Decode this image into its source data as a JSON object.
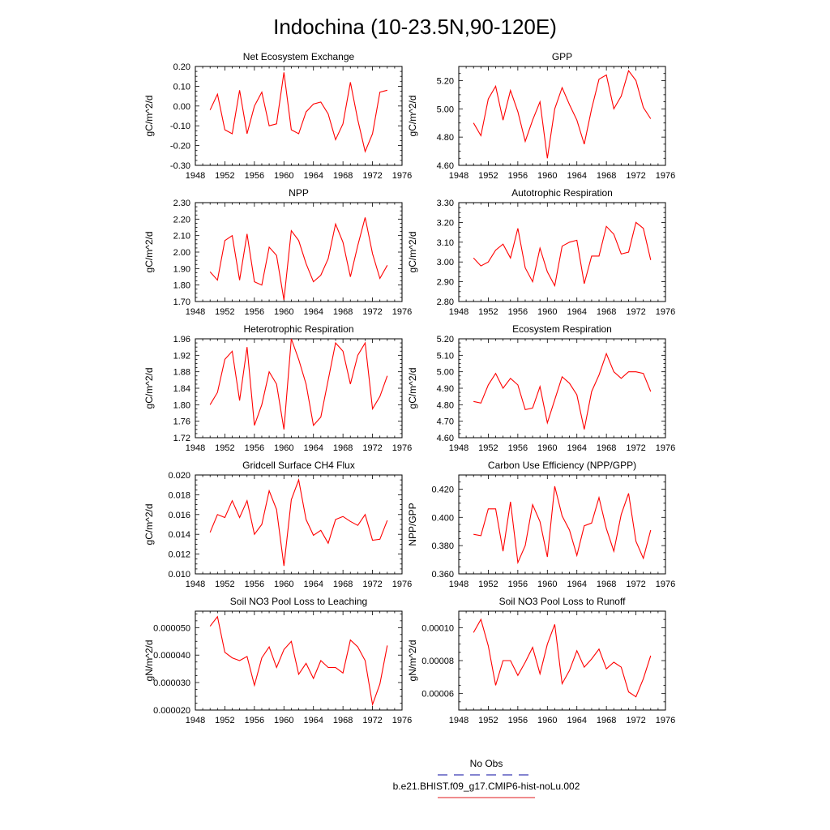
{
  "page_title": "Indochina (10-23.5N,90-120E)",
  "legend": {
    "items": [
      {
        "label": "No Obs",
        "color": "#3b3bb3",
        "style": "dashed"
      },
      {
        "label": "b.e21.BHIST.f09_g17.CMIP6-hist-noLu.002",
        "color": "#e8474a",
        "style": "solid"
      }
    ]
  },
  "chart_data": [
    {
      "type": "line",
      "title": "Net Ecosystem Exchange",
      "ylabel": "gC/m^2/d",
      "xlim": [
        1948,
        1976
      ],
      "xticks": [
        1948,
        1952,
        1956,
        1960,
        1964,
        1968,
        1972,
        1976
      ],
      "ylim": [
        -0.3,
        0.2
      ],
      "yticks": [
        -0.3,
        -0.2,
        -0.1,
        0.0,
        0.1,
        0.2
      ],
      "ytick_labels": [
        "-0.30",
        "-0.20",
        "-0.10",
        "0.00",
        "0.10",
        "0.20"
      ],
      "x": [
        1950,
        1951,
        1952,
        1953,
        1954,
        1955,
        1956,
        1957,
        1958,
        1959,
        1960,
        1961,
        1962,
        1963,
        1964,
        1965,
        1966,
        1967,
        1968,
        1969,
        1970,
        1971,
        1972,
        1973,
        1974
      ],
      "series": [
        {
          "color": "#ff0000",
          "values": [
            -0.02,
            0.06,
            -0.12,
            -0.14,
            0.08,
            -0.14,
            0.0,
            0.07,
            -0.1,
            -0.09,
            0.17,
            -0.12,
            -0.14,
            -0.03,
            0.01,
            0.02,
            -0.04,
            -0.17,
            -0.09,
            0.12,
            -0.07,
            -0.23,
            -0.14,
            0.07,
            0.08
          ]
        }
      ]
    },
    {
      "type": "line",
      "title": "GPP",
      "ylabel": "gC/m^2/d",
      "xlim": [
        1948,
        1976
      ],
      "xticks": [
        1948,
        1952,
        1956,
        1960,
        1964,
        1968,
        1972,
        1976
      ],
      "ylim": [
        4.6,
        5.3
      ],
      "yticks": [
        4.6,
        4.8,
        5.0,
        5.2
      ],
      "ytick_labels": [
        "4.60",
        "4.80",
        "5.00",
        "5.20"
      ],
      "x": [
        1950,
        1951,
        1952,
        1953,
        1954,
        1955,
        1956,
        1957,
        1958,
        1959,
        1960,
        1961,
        1962,
        1963,
        1964,
        1965,
        1966,
        1967,
        1968,
        1969,
        1970,
        1971,
        1972,
        1973,
        1974
      ],
      "series": [
        {
          "color": "#ff0000",
          "values": [
            4.9,
            4.81,
            5.07,
            5.16,
            4.92,
            5.13,
            4.98,
            4.77,
            4.92,
            5.05,
            4.65,
            5.0,
            5.15,
            5.03,
            4.92,
            4.75,
            5.0,
            5.21,
            5.24,
            5.0,
            5.09,
            5.27,
            5.2,
            5.01,
            4.93
          ]
        }
      ]
    },
    {
      "type": "line",
      "title": "NPP",
      "ylabel": "gC/m^2/d",
      "xlim": [
        1948,
        1976
      ],
      "xticks": [
        1948,
        1952,
        1956,
        1960,
        1964,
        1968,
        1972,
        1976
      ],
      "ylim": [
        1.7,
        2.3
      ],
      "yticks": [
        1.7,
        1.8,
        1.9,
        2.0,
        2.1,
        2.2,
        2.3
      ],
      "ytick_labels": [
        "1.70",
        "1.80",
        "1.90",
        "2.00",
        "2.10",
        "2.20",
        "2.30"
      ],
      "x": [
        1950,
        1951,
        1952,
        1953,
        1954,
        1955,
        1956,
        1957,
        1958,
        1959,
        1960,
        1961,
        1962,
        1963,
        1964,
        1965,
        1966,
        1967,
        1968,
        1969,
        1970,
        1971,
        1972,
        1973,
        1974
      ],
      "series": [
        {
          "color": "#ff0000",
          "values": [
            1.88,
            1.83,
            2.07,
            2.1,
            1.83,
            2.11,
            1.82,
            1.8,
            2.03,
            1.98,
            1.71,
            2.13,
            2.07,
            1.93,
            1.82,
            1.86,
            1.96,
            2.17,
            2.06,
            1.85,
            2.04,
            2.21,
            1.99,
            1.84,
            1.92
          ]
        }
      ]
    },
    {
      "type": "line",
      "title": "Autotrophic Respiration",
      "ylabel": "gC/m^2/d",
      "xlim": [
        1948,
        1976
      ],
      "xticks": [
        1948,
        1952,
        1956,
        1960,
        1964,
        1968,
        1972,
        1976
      ],
      "ylim": [
        2.8,
        3.3
      ],
      "yticks": [
        2.8,
        2.9,
        3.0,
        3.1,
        3.2,
        3.3
      ],
      "ytick_labels": [
        "2.80",
        "2.90",
        "3.00",
        "3.10",
        "3.20",
        "3.30"
      ],
      "x": [
        1950,
        1951,
        1952,
        1953,
        1954,
        1955,
        1956,
        1957,
        1958,
        1959,
        1960,
        1961,
        1962,
        1963,
        1964,
        1965,
        1966,
        1967,
        1968,
        1969,
        1970,
        1971,
        1972,
        1973,
        1974
      ],
      "series": [
        {
          "color": "#ff0000",
          "values": [
            3.02,
            2.98,
            3.0,
            3.06,
            3.09,
            3.02,
            3.17,
            2.97,
            2.9,
            3.07,
            2.95,
            2.88,
            3.08,
            3.1,
            3.11,
            2.89,
            3.03,
            3.03,
            3.18,
            3.14,
            3.04,
            3.05,
            3.2,
            3.17,
            3.01
          ]
        }
      ]
    },
    {
      "type": "line",
      "title": "Heterotrophic Respiration",
      "ylabel": "gC/m^2/d",
      "xlim": [
        1948,
        1976
      ],
      "xticks": [
        1948,
        1952,
        1956,
        1960,
        1964,
        1968,
        1972,
        1976
      ],
      "ylim": [
        1.72,
        1.96
      ],
      "yticks": [
        1.72,
        1.76,
        1.8,
        1.84,
        1.88,
        1.92,
        1.96
      ],
      "ytick_labels": [
        "1.72",
        "1.76",
        "1.80",
        "1.84",
        "1.88",
        "1.92",
        "1.96"
      ],
      "x": [
        1950,
        1951,
        1952,
        1953,
        1954,
        1955,
        1956,
        1957,
        1958,
        1959,
        1960,
        1961,
        1962,
        1963,
        1964,
        1965,
        1966,
        1967,
        1968,
        1969,
        1970,
        1971,
        1972,
        1973,
        1974
      ],
      "series": [
        {
          "color": "#ff0000",
          "values": [
            1.8,
            1.83,
            1.91,
            1.93,
            1.81,
            1.94,
            1.75,
            1.8,
            1.88,
            1.85,
            1.74,
            1.96,
            1.91,
            1.85,
            1.75,
            1.77,
            1.86,
            1.95,
            1.93,
            1.85,
            1.92,
            1.95,
            1.79,
            1.82,
            1.87
          ]
        }
      ]
    },
    {
      "type": "line",
      "title": "Ecosystem Respiration",
      "ylabel": "gC/m^2/d",
      "xlim": [
        1948,
        1976
      ],
      "xticks": [
        1948,
        1952,
        1956,
        1960,
        1964,
        1968,
        1972,
        1976
      ],
      "ylim": [
        4.6,
        5.2
      ],
      "yticks": [
        4.6,
        4.7,
        4.8,
        4.9,
        5.0,
        5.1,
        5.2
      ],
      "ytick_labels": [
        "4.60",
        "4.70",
        "4.80",
        "4.90",
        "5.00",
        "5.10",
        "5.20"
      ],
      "x": [
        1950,
        1951,
        1952,
        1953,
        1954,
        1955,
        1956,
        1957,
        1958,
        1959,
        1960,
        1961,
        1962,
        1963,
        1964,
        1965,
        1966,
        1967,
        1968,
        1969,
        1970,
        1971,
        1972,
        1973,
        1974
      ],
      "series": [
        {
          "color": "#ff0000",
          "values": [
            4.82,
            4.81,
            4.92,
            4.99,
            4.9,
            4.96,
            4.92,
            4.77,
            4.78,
            4.91,
            4.69,
            4.83,
            4.97,
            4.93,
            4.86,
            4.65,
            4.88,
            4.98,
            5.11,
            5.0,
            4.96,
            5.0,
            5.0,
            4.99,
            4.88
          ]
        }
      ]
    },
    {
      "type": "line",
      "title": "Gridcell Surface CH4 Flux",
      "ylabel": "gC/m^2/d",
      "xlim": [
        1948,
        1976
      ],
      "xticks": [
        1948,
        1952,
        1956,
        1960,
        1964,
        1968,
        1972,
        1976
      ],
      "ylim": [
        0.01,
        0.02
      ],
      "yticks": [
        0.01,
        0.012,
        0.014,
        0.016,
        0.018,
        0.02
      ],
      "ytick_labels": [
        "0.010",
        "0.012",
        "0.014",
        "0.016",
        "0.018",
        "0.020"
      ],
      "x": [
        1950,
        1951,
        1952,
        1953,
        1954,
        1955,
        1956,
        1957,
        1958,
        1959,
        1960,
        1961,
        1962,
        1963,
        1964,
        1965,
        1966,
        1967,
        1968,
        1969,
        1970,
        1971,
        1972,
        1973,
        1974
      ],
      "series": [
        {
          "color": "#ff0000",
          "values": [
            0.0142,
            0.016,
            0.0157,
            0.0174,
            0.0157,
            0.0174,
            0.014,
            0.015,
            0.0184,
            0.0165,
            0.0108,
            0.0175,
            0.0195,
            0.0155,
            0.0139,
            0.0144,
            0.0131,
            0.0155,
            0.0158,
            0.0153,
            0.0149,
            0.016,
            0.0134,
            0.0135,
            0.0154
          ]
        }
      ]
    },
    {
      "type": "line",
      "title": "Carbon Use Efficiency (NPP/GPP)",
      "ylabel": "NPP/GPP",
      "xlim": [
        1948,
        1976
      ],
      "xticks": [
        1948,
        1952,
        1956,
        1960,
        1964,
        1968,
        1972,
        1976
      ],
      "ylim": [
        0.36,
        0.43
      ],
      "yticks": [
        0.36,
        0.38,
        0.4,
        0.42
      ],
      "ytick_labels": [
        "0.360",
        "0.380",
        "0.400",
        "0.420"
      ],
      "x": [
        1950,
        1951,
        1952,
        1953,
        1954,
        1955,
        1956,
        1957,
        1958,
        1959,
        1960,
        1961,
        1962,
        1963,
        1964,
        1965,
        1966,
        1967,
        1968,
        1969,
        1970,
        1971,
        1972,
        1973,
        1974
      ],
      "series": [
        {
          "color": "#ff0000",
          "values": [
            0.388,
            0.387,
            0.406,
            0.406,
            0.376,
            0.411,
            0.368,
            0.38,
            0.409,
            0.397,
            0.372,
            0.422,
            0.401,
            0.391,
            0.373,
            0.394,
            0.396,
            0.414,
            0.392,
            0.376,
            0.402,
            0.417,
            0.383,
            0.371,
            0.391
          ]
        }
      ]
    },
    {
      "type": "line",
      "title": "Soil NO3 Pool Loss to Leaching",
      "ylabel": "gN/m^2/d",
      "xlim": [
        1948,
        1976
      ],
      "xticks": [
        1948,
        1952,
        1956,
        1960,
        1964,
        1968,
        1972,
        1976
      ],
      "ylim": [
        2e-05,
        5.6e-05
      ],
      "yticks": [
        2e-05,
        3e-05,
        4e-05,
        5e-05
      ],
      "ytick_labels": [
        "0.000020",
        "0.000030",
        "0.000040",
        "0.000050"
      ],
      "x": [
        1950,
        1951,
        1952,
        1953,
        1954,
        1955,
        1956,
        1957,
        1958,
        1959,
        1960,
        1961,
        1962,
        1963,
        1964,
        1965,
        1966,
        1967,
        1968,
        1969,
        1970,
        1971,
        1972,
        1973,
        1974
      ],
      "series": [
        {
          "color": "#ff0000",
          "values": [
            5.05e-05,
            5.4e-05,
            4.1e-05,
            3.9e-05,
            3.8e-05,
            3.95e-05,
            2.9e-05,
            3.9e-05,
            4.3e-05,
            3.55e-05,
            4.2e-05,
            4.5e-05,
            3.3e-05,
            3.7e-05,
            3.15e-05,
            3.8e-05,
            3.55e-05,
            3.55e-05,
            3.35e-05,
            4.55e-05,
            4.3e-05,
            3.8e-05,
            2.2e-05,
            2.95e-05,
            4.35e-05
          ]
        }
      ]
    },
    {
      "type": "line",
      "title": "Soil NO3 Pool Loss to Runoff",
      "ylabel": "gN/m^2/d",
      "xlim": [
        1948,
        1976
      ],
      "xticks": [
        1948,
        1952,
        1956,
        1960,
        1964,
        1968,
        1972,
        1976
      ],
      "ylim": [
        5e-05,
        0.00011
      ],
      "yticks": [
        6e-05,
        8e-05,
        0.0001
      ],
      "ytick_labels": [
        "0.00006",
        "0.00008",
        "0.00010"
      ],
      "x": [
        1950,
        1951,
        1952,
        1953,
        1954,
        1955,
        1956,
        1957,
        1958,
        1959,
        1960,
        1961,
        1962,
        1963,
        1964,
        1965,
        1966,
        1967,
        1968,
        1969,
        1970,
        1971,
        1972,
        1973,
        1974
      ],
      "series": [
        {
          "color": "#ff0000",
          "values": [
            9.7e-05,
            0.000105,
            8.9e-05,
            6.5e-05,
            8e-05,
            8e-05,
            7.1e-05,
            7.9e-05,
            8.8e-05,
            7.2e-05,
            9e-05,
            0.000102,
            6.6e-05,
            7.4e-05,
            8.6e-05,
            7.6e-05,
            8.1e-05,
            8.7e-05,
            7.5e-05,
            7.9e-05,
            7.6e-05,
            6.1e-05,
            5.8e-05,
            6.9e-05,
            8.3e-05
          ]
        }
      ]
    }
  ]
}
